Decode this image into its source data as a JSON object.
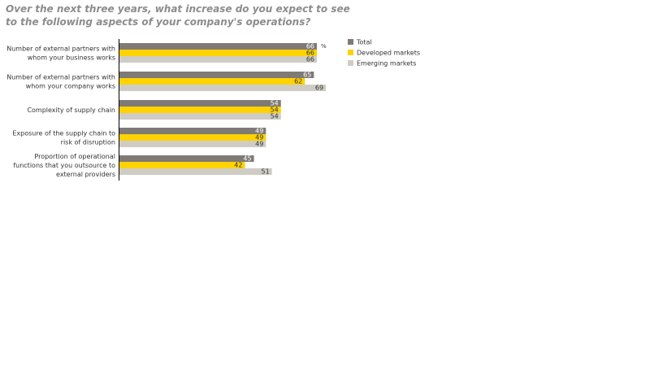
{
  "chart_data": {
    "type": "bar",
    "orientation": "horizontal",
    "title": "Over the next three years, what increase do you expect to see to the following aspects of your company's operations?",
    "unit": "%",
    "categories": [
      [
        "Number of external partners with",
        "whom your business works"
      ],
      [
        "Number of external partners with",
        "whom your company works"
      ],
      [
        "Complexity of supply chain"
      ],
      [
        "Exposure of the supply chain to",
        "risk of disruption"
      ],
      [
        "Proportion of operational",
        "functions that you outsource to",
        "external providers"
      ]
    ],
    "series": [
      {
        "name": "Total",
        "color": "#7f7a76",
        "label_color": "#ffffff",
        "values": [
          66,
          65,
          54,
          49,
          45
        ]
      },
      {
        "name": "Developed markets",
        "color": "#ffd200",
        "label_color": "#333333",
        "values": [
          66,
          62,
          54,
          49,
          42
        ]
      },
      {
        "name": "Emerging markets",
        "color": "#cfccc6",
        "label_color": "#333333",
        "values": [
          66,
          69,
          54,
          49,
          51
        ]
      }
    ],
    "xlim": [
      0,
      100
    ],
    "grid": false,
    "legend_position": "top-right"
  }
}
